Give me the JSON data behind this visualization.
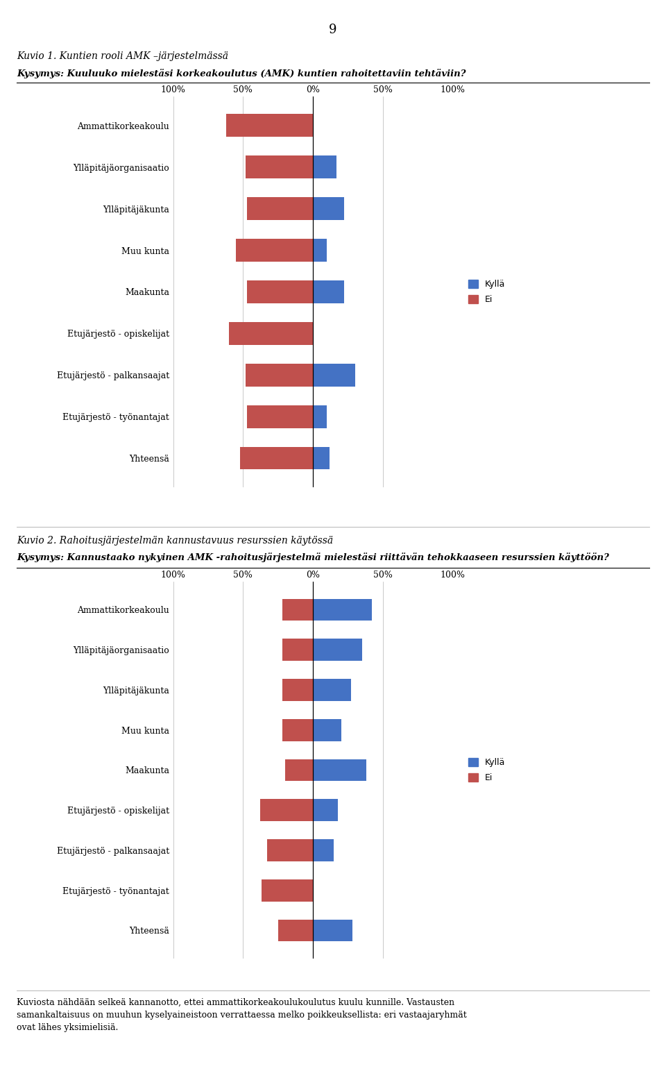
{
  "page_number": "9",
  "fig1_title": "Kuvio 1. Kuntien rooli AMK –järjestelmässä",
  "fig1_question": "Kysymys: Kuuluuko mielestäsi korkeakoulutus (AMK) kuntien rahoitettaviin tehtäviin?",
  "fig2_title": "Kuvio 2. Rahoitusjärjestelmän kannustavuus resurssien käytössä",
  "fig2_question": "Kysymys: Kannustaako nykyinen AMK -rahoitusjärjestelmä mielestäsi riittävän tehokkaaseen resurssien käyttöön?",
  "footer_line1": "Kuviosta nähdään selkeä kannanotto, ettei ammattikorkeakoulukoulutus kuulu kunnille. Vastausten",
  "footer_line2": "samankaltaisuus on muuhun kyselyaineistoon verrattaessa melko poikkeuksellista: eri vastaajaryhmät",
  "footer_line3": "ovat lähes yksimielisiä.",
  "categories": [
    "Ammattikorkeakoulu",
    "Ylläpitäjäorganisaatio",
    "Ylläpitäjäkunta",
    "Muu kunta",
    "Maakunta",
    "Etujärjestö - opiskelijat",
    "Etujärjestö - palkansaajat",
    "Etujärjestö - työnantajat",
    "Yhteensä"
  ],
  "fig1_ei": [
    62,
    48,
    47,
    55,
    47,
    60,
    48,
    47,
    52
  ],
  "fig1_kylla": [
    0,
    17,
    22,
    10,
    22,
    0,
    30,
    10,
    12
  ],
  "fig2_ei": [
    22,
    22,
    22,
    22,
    20,
    38,
    33,
    37,
    25
  ],
  "fig2_kylla": [
    42,
    35,
    27,
    20,
    38,
    18,
    15,
    0,
    28
  ],
  "color_kylla": "#4472C4",
  "color_ei": "#C0504D",
  "legend_kylla": "Kyllä",
  "legend_ei": "Ei",
  "bg_color": "#FFFFFF"
}
